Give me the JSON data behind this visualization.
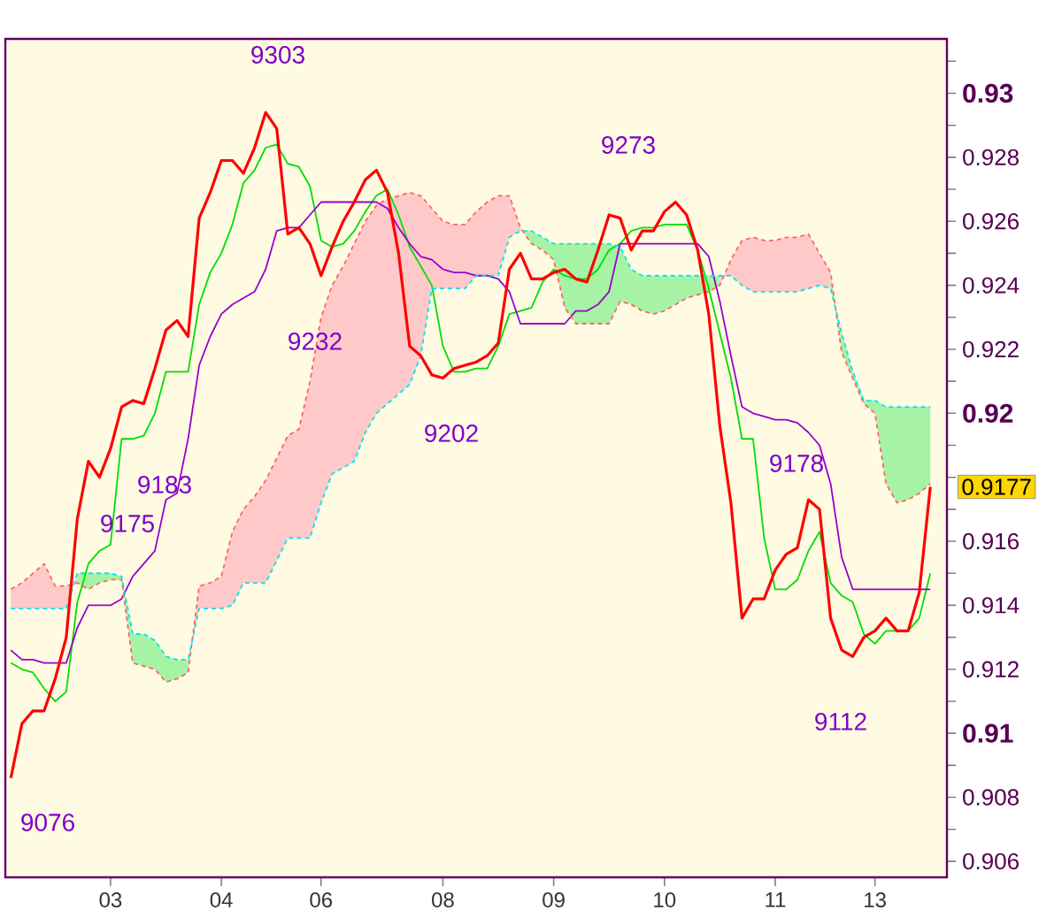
{
  "chart_data": {
    "type": "line",
    "categories": [
      null,
      null,
      null,
      null,
      null,
      null,
      null,
      null,
      null,
      "03",
      null,
      null,
      null,
      null,
      null,
      null,
      null,
      null,
      null,
      "04",
      null,
      null,
      null,
      null,
      null,
      null,
      null,
      null,
      "06",
      null,
      null,
      null,
      null,
      null,
      null,
      null,
      null,
      null,
      null,
      "08",
      null,
      null,
      null,
      null,
      null,
      null,
      null,
      null,
      null,
      "09",
      null,
      null,
      null,
      null,
      null,
      null,
      null,
      null,
      null,
      "10",
      null,
      null,
      null,
      null,
      null,
      null,
      null,
      null,
      null,
      "11",
      null,
      null,
      null,
      null,
      null,
      null,
      null,
      null,
      "13",
      null,
      null,
      null,
      null,
      null,
      null
    ],
    "ylim": [
      0.9055,
      0.9317
    ],
    "yticks": [
      0.906,
      {
        "value": 0.907,
        "label": null
      },
      0.908,
      {
        "value": 0.909,
        "label": null
      },
      0.91,
      {
        "value": 0.911,
        "label": null
      },
      0.912,
      {
        "value": 0.913,
        "label": null
      },
      0.914,
      {
        "value": 0.915,
        "label": null
      },
      0.916,
      {
        "value": 0.917,
        "label": null
      },
      {
        "value": 0.918,
        "label": null
      },
      {
        "value": 0.919,
        "label": null
      },
      0.92,
      {
        "value": 0.921,
        "label": null
      },
      0.922,
      {
        "value": 0.923,
        "label": null
      },
      0.924,
      {
        "value": 0.925,
        "label": null
      },
      0.926,
      {
        "value": 0.927,
        "label": null
      },
      0.928,
      {
        "value": 0.929,
        "label": null
      },
      0.93,
      {
        "value": 0.931,
        "label": null
      }
    ],
    "series": [
      {
        "color": "#ff0000",
        "values": [
          0.9086,
          0.9103,
          0.9107,
          0.9107,
          0.9117,
          0.913,
          0.9167,
          0.9185,
          0.918,
          0.9189,
          0.9202,
          0.9204,
          0.9203,
          0.9214,
          0.9226,
          0.9229,
          0.9224,
          0.9261,
          0.9269,
          0.9279,
          0.9279,
          0.9275,
          0.9283,
          0.9294,
          0.9289,
          0.9256,
          0.9258,
          0.9253,
          0.9243,
          0.9252,
          0.926,
          0.9266,
          0.9273,
          0.9276,
          0.9269,
          0.925,
          0.9221,
          0.9218,
          0.9212,
          0.9211,
          0.9214,
          0.9215,
          0.9216,
          0.9218,
          0.9222,
          0.9245,
          0.925,
          0.9242,
          0.9242,
          0.9244,
          0.9245,
          0.9242,
          0.9241,
          0.9251,
          0.9262,
          0.9261,
          0.9251,
          0.9257,
          0.9257,
          0.9263,
          0.9266,
          0.9262,
          0.9251,
          0.9231,
          0.9196,
          0.9172,
          0.9136,
          0.9142,
          0.9142,
          0.9151,
          0.9156,
          0.9158,
          0.9173,
          0.917,
          0.9136,
          0.9126,
          0.9124,
          0.913,
          0.9132,
          0.9136,
          0.9132,
          0.9132,
          0.9144,
          0.9177,
          null
        ],
        "value_labels": [
          null,
          null,
          null,
          null,
          null,
          null,
          null,
          null,
          null,
          null,
          null,
          null,
          null,
          null,
          null,
          null,
          null,
          null,
          null,
          null,
          null,
          null,
          null,
          null,
          null,
          null,
          null,
          null,
          null,
          null,
          null,
          null,
          null,
          null,
          null,
          null,
          null,
          null,
          null,
          null,
          null,
          null,
          null,
          null,
          null,
          null,
          null,
          null,
          null,
          null,
          null,
          null,
          null,
          null,
          null,
          null,
          null,
          null,
          null,
          null,
          null,
          null,
          null,
          null,
          null,
          null,
          null,
          null,
          null,
          null,
          null,
          null,
          null,
          null,
          null,
          null,
          null,
          null,
          null,
          null,
          null,
          null,
          null,
          "0.9177",
          null
        ]
      },
      {
        "color": "#00dd00",
        "values": [
          0.9122,
          0.912,
          0.9119,
          0.9114,
          0.911,
          0.9113,
          0.9141,
          0.9153,
          0.9157,
          0.9159,
          0.9192,
          0.9192,
          0.9193,
          0.92,
          0.9213,
          0.9213,
          0.9213,
          0.9234,
          0.9244,
          0.925,
          0.9259,
          0.9272,
          0.9276,
          0.9283,
          0.9284,
          0.9278,
          0.9277,
          0.9271,
          0.9254,
          0.9252,
          0.9253,
          0.9257,
          0.9263,
          0.9268,
          0.927,
          0.9262,
          0.9252,
          0.9246,
          0.924,
          0.9221,
          0.9213,
          0.9213,
          0.9214,
          0.9214,
          0.9221,
          0.9231,
          0.9232,
          0.9233,
          0.9241,
          0.9245,
          0.9243,
          0.9242,
          0.9242,
          0.9245,
          0.9251,
          0.9253,
          0.9257,
          0.9258,
          0.9258,
          0.9259,
          0.9259,
          0.9259,
          0.9251,
          0.9239,
          0.9225,
          0.9211,
          0.9192,
          0.9192,
          0.9161,
          0.9145,
          0.9145,
          0.9148,
          0.9157,
          0.9163,
          0.9147,
          0.9143,
          0.9141,
          0.9131,
          0.9128,
          0.9132,
          0.9132,
          0.9132,
          0.9136,
          0.915,
          null
        ]
      },
      {
        "color": "#9900cc",
        "values": [
          0.9126,
          0.9123,
          0.9123,
          0.9122,
          0.9122,
          0.9122,
          0.9133,
          0.914,
          0.914,
          0.914,
          0.9142,
          0.9149,
          0.9153,
          0.9157,
          0.9173,
          0.9175,
          0.9192,
          0.9215,
          0.9224,
          0.9231,
          0.9234,
          0.9236,
          0.9238,
          0.9245,
          0.9257,
          0.9258,
          0.9258,
          0.9262,
          0.9266,
          0.9266,
          0.9266,
          0.9266,
          0.9266,
          0.9266,
          0.9264,
          0.9258,
          0.9253,
          0.9249,
          0.9248,
          0.9245,
          0.9244,
          0.9244,
          0.9243,
          0.9243,
          0.9242,
          0.9238,
          0.9228,
          0.9228,
          0.9228,
          0.9228,
          0.9228,
          0.9232,
          0.9232,
          0.9234,
          0.9238,
          0.9253,
          0.9253,
          0.9253,
          0.9253,
          0.9253,
          0.9253,
          0.9253,
          0.9253,
          0.9249,
          0.9235,
          0.9218,
          0.9202,
          0.92,
          0.9199,
          0.9198,
          0.9198,
          0.9197,
          0.9194,
          0.919,
          0.9178,
          0.9155,
          0.9145,
          0.9145,
          0.9145,
          0.9145,
          0.9145,
          0.9145,
          0.9145,
          0.9145,
          null
        ]
      },
      {
        "color": "#ff6666",
        "line_style": "dashed",
        "values": [
          0.9145,
          0.9147,
          0.915,
          0.9153,
          0.9146,
          0.9146,
          0.9147,
          0.9145,
          0.9147,
          0.9148,
          0.9148,
          0.9122,
          0.9121,
          0.912,
          0.9116,
          0.9117,
          0.9119,
          0.9146,
          0.9147,
          0.9149,
          0.9163,
          0.917,
          0.9174,
          0.9179,
          0.9186,
          0.9193,
          0.9195,
          0.921,
          0.923,
          0.924,
          0.9246,
          0.9253,
          0.926,
          0.9265,
          0.9267,
          0.9268,
          0.9269,
          0.9268,
          0.9264,
          0.926,
          0.9259,
          0.9259,
          0.9263,
          0.9266,
          0.9268,
          0.9268,
          0.9258,
          0.9253,
          0.9251,
          0.9248,
          0.9233,
          0.9228,
          0.9228,
          0.9228,
          0.9228,
          0.9235,
          0.9234,
          0.9232,
          0.9231,
          0.9232,
          0.9234,
          0.9236,
          0.9237,
          0.9238,
          0.924,
          0.9248,
          0.9254,
          0.9255,
          0.9254,
          0.9254,
          0.9255,
          0.9255,
          0.9256,
          0.925,
          0.9244,
          0.9219,
          0.9211,
          0.9203,
          0.92,
          0.9178,
          0.9172,
          0.9173,
          0.9175,
          0.9178,
          null
        ]
      },
      {
        "color": "#00e5ee",
        "line_style": "dashed",
        "values": [
          0.9139,
          0.9139,
          0.9139,
          0.9139,
          0.9139,
          0.9139,
          0.915,
          0.915,
          0.915,
          0.915,
          0.9149,
          0.9131,
          0.9131,
          0.9129,
          0.9124,
          0.9123,
          0.9123,
          0.9139,
          0.9139,
          0.9139,
          0.914,
          0.9147,
          0.9147,
          0.9147,
          0.9154,
          0.9161,
          0.9161,
          0.9161,
          0.9172,
          0.9181,
          0.9183,
          0.9185,
          0.9194,
          0.92,
          0.9203,
          0.9206,
          0.9209,
          0.9218,
          0.9239,
          0.9239,
          0.9239,
          0.9239,
          0.9243,
          0.9243,
          0.9243,
          0.9255,
          0.9257,
          0.9257,
          0.9255,
          0.9253,
          0.9253,
          0.9253,
          0.9253,
          0.9253,
          0.9253,
          0.9252,
          0.9245,
          0.9243,
          0.9243,
          0.9243,
          0.9243,
          0.9243,
          0.9243,
          0.9243,
          0.9243,
          0.9243,
          0.924,
          0.9238,
          0.9238,
          0.9238,
          0.9238,
          0.9238,
          0.9239,
          0.924,
          0.9239,
          0.9225,
          0.9213,
          0.9204,
          0.9204,
          0.9202,
          0.9202,
          0.9202,
          0.9202,
          0.9202,
          null
        ]
      }
    ],
    "annotations": [
      "9303",
      "9273",
      "9232",
      "9202",
      "9183",
      "9175",
      "9076",
      "9178",
      "9112"
    ]
  }
}
